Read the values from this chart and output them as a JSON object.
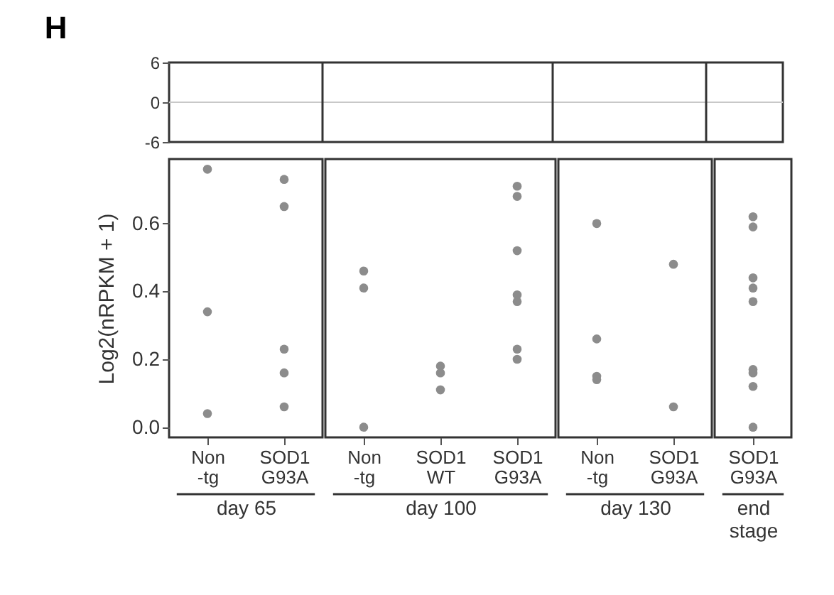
{
  "chart_data": [
    {
      "type": "line",
      "title": "H",
      "categories": [
        null,
        null,
        null,
        null,
        null,
        null,
        null,
        null
      ],
      "ylim": [
        -6,
        6
      ],
      "yticks": [
        {
          "value": -6,
          "label": "-6"
        },
        0,
        6
      ],
      "tick_labels": "y",
      "ref_lines": [
        {
          "axis": "y",
          "value": 0,
          "color": "#c8c8c8"
        }
      ]
    },
    {
      "type": "scatter",
      "ylabel": "Log2(nRPKM + 1)",
      "xlabel": "day 65",
      "categories": [
        "Non -tg",
        "SOD1 G93A"
      ],
      "ylim": [
        -0.03,
        0.79
      ],
      "yticks": [
        {
          "value": 0,
          "label": "0.0"
        },
        0.2,
        0.4,
        0.6
      ],
      "marker": "circle",
      "series": [
        {
          "color": "#8c8c8c",
          "x": [
            "Non -tg",
            "Non -tg",
            "Non -tg"
          ],
          "values": [
            0.76,
            0.34,
            0.04
          ]
        },
        {
          "color": "#8c8c8c",
          "x": [
            "SOD1 G93A",
            "SOD1 G93A",
            "SOD1 G93A",
            "SOD1 G93A",
            "SOD1 G93A"
          ],
          "values": [
            0.73,
            0.65,
            0.23,
            0.16,
            0.06
          ]
        }
      ]
    },
    {
      "type": "scatter",
      "xlabel": "day 100",
      "categories": [
        "Non -tg",
        "SOD1 WT",
        "SOD1 G93A"
      ],
      "ylim": [
        -0.03,
        0.79
      ],
      "tick_labels": "x",
      "marker": "circle",
      "series": [
        {
          "color": "#8c8c8c",
          "x": [
            "Non -tg",
            "Non -tg",
            "Non -tg"
          ],
          "values": [
            0.46,
            0.41,
            0.0
          ]
        },
        {
          "color": "#8c8c8c",
          "x": [
            "SOD1 WT",
            "SOD1 WT",
            "SOD1 WT"
          ],
          "values": [
            0.18,
            0.16,
            0.11
          ]
        },
        {
          "color": "#8c8c8c",
          "x": [
            "SOD1 G93A",
            "SOD1 G93A",
            "SOD1 G93A",
            "SOD1 G93A",
            "SOD1 G93A",
            "SOD1 G93A",
            "SOD1 G93A"
          ],
          "values": [
            0.71,
            0.68,
            0.52,
            0.39,
            0.37,
            0.23,
            0.2
          ]
        }
      ]
    },
    {
      "type": "scatter",
      "xlabel": "day 130",
      "categories": [
        "Non -tg",
        "SOD1 G93A"
      ],
      "ylim": [
        -0.03,
        0.79
      ],
      "tick_labels": "x",
      "marker": "circle",
      "series": [
        {
          "color": "#8c8c8c",
          "x": [
            "Non -tg",
            "Non -tg",
            "Non -tg",
            "Non -tg"
          ],
          "values": [
            0.6,
            0.26,
            0.15,
            0.14
          ]
        },
        {
          "color": "#8c8c8c",
          "x": [
            "SOD1 G93A",
            "SOD1 G93A"
          ],
          "values": [
            0.48,
            0.06
          ]
        }
      ]
    },
    {
      "type": "scatter",
      "xlabel": "end stage",
      "categories": [
        "SOD1 G93A"
      ],
      "ylim": [
        -0.03,
        0.79
      ],
      "tick_labels": "x",
      "marker": "circle",
      "series": [
        {
          "color": "#8c8c8c",
          "x": [
            "SOD1 G93A",
            "SOD1 G93A",
            "SOD1 G93A",
            "SOD1 G93A",
            "SOD1 G93A",
            "SOD1 G93A",
            "SOD1 G93A",
            "SOD1 G93A",
            "SOD1 G93A"
          ],
          "values": [
            0.62,
            0.59,
            0.44,
            0.41,
            0.37,
            0.17,
            0.16,
            0.12,
            0.0
          ]
        }
      ]
    }
  ]
}
